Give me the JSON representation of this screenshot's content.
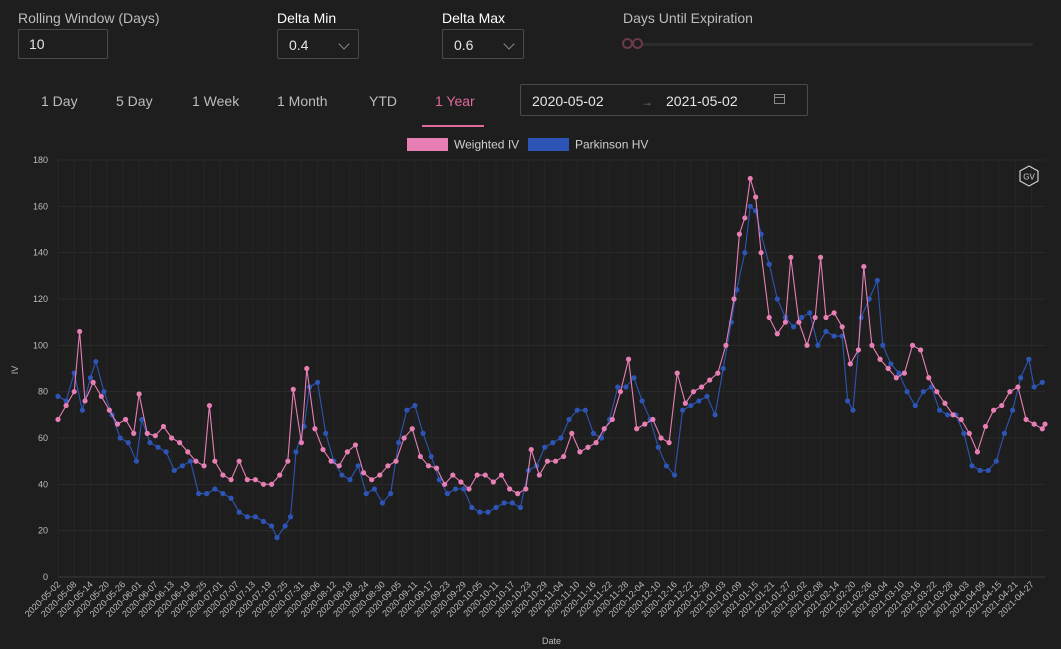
{
  "controls": {
    "rolling_window_label": "Rolling Window (Days)",
    "rolling_window_value": "10",
    "delta_min_label": "Delta Min",
    "delta_min_value": "0.4",
    "delta_max_label": "Delta Max",
    "delta_max_value": "0.6",
    "days_until_expiration_label": "Days Until Expiration"
  },
  "tabs": [
    "1 Day",
    "5 Day",
    "1 Week",
    "1 Month",
    "YTD",
    "1 Year"
  ],
  "active_tab": "1 Year",
  "date_range": {
    "start": "2020-05-02",
    "end": "2021-05-02"
  },
  "logo_text": "GV",
  "colors": {
    "background": "#1e1e1e",
    "accent": "#e06aa0",
    "weighted_iv": "#e77fb5",
    "parkinson_hv": "#2d55b5"
  },
  "chart_data": {
    "type": "line",
    "xlabel": "Date",
    "ylabel": "IV",
    "ylim": [
      0,
      180
    ],
    "yticks": [
      0,
      20,
      40,
      60,
      80,
      100,
      120,
      140,
      160,
      180
    ],
    "x_start": "2020-05-02",
    "x_end": "2021-05-02",
    "xtick_labels": [
      "2020-05-02",
      "2020-05-08",
      "2020-05-14",
      "2020-05-20",
      "2020-05-26",
      "2020-06-01",
      "2020-06-07",
      "2020-06-13",
      "2020-06-19",
      "2020-06-25",
      "2020-07-01",
      "2020-07-07",
      "2020-07-13",
      "2020-07-19",
      "2020-07-25",
      "2020-07-31",
      "2020-08-06",
      "2020-08-12",
      "2020-08-18",
      "2020-08-24",
      "2020-08-30",
      "2020-09-05",
      "2020-09-11",
      "2020-09-17",
      "2020-09-23",
      "2020-09-29",
      "2020-10-05",
      "2020-10-11",
      "2020-10-17",
      "2020-10-23",
      "2020-10-29",
      "2020-11-04",
      "2020-11-10",
      "2020-11-16",
      "2020-11-22",
      "2020-11-28",
      "2020-12-04",
      "2020-12-10",
      "2020-12-16",
      "2020-12-22",
      "2020-12-28",
      "2021-01-03",
      "2021-01-09",
      "2021-01-15",
      "2021-01-21",
      "2021-01-27",
      "2021-02-02",
      "2021-02-08",
      "2021-02-14",
      "2021-02-20",
      "2021-02-26",
      "2021-03-04",
      "2021-03-10",
      "2021-03-16",
      "2021-03-22",
      "2021-03-28",
      "2021-04-03",
      "2021-04-09",
      "2021-04-15",
      "2021-04-21",
      "2021-04-27"
    ],
    "legend_position": "top-center",
    "grid": true,
    "series": [
      {
        "name": "Weighted IV",
        "color": "#e77fb5",
        "points": [
          [
            "2020-05-02",
            68
          ],
          [
            "2020-05-05",
            74
          ],
          [
            "2020-05-08",
            80
          ],
          [
            "2020-05-10",
            106
          ],
          [
            "2020-05-12",
            76
          ],
          [
            "2020-05-15",
            84
          ],
          [
            "2020-05-18",
            78
          ],
          [
            "2020-05-21",
            72
          ],
          [
            "2020-05-24",
            66
          ],
          [
            "2020-05-27",
            68
          ],
          [
            "2020-05-30",
            62
          ],
          [
            "2020-06-01",
            79
          ],
          [
            "2020-06-04",
            62
          ],
          [
            "2020-06-07",
            61
          ],
          [
            "2020-06-10",
            65
          ],
          [
            "2020-06-13",
            60
          ],
          [
            "2020-06-16",
            58
          ],
          [
            "2020-06-19",
            54
          ],
          [
            "2020-06-22",
            50
          ],
          [
            "2020-06-25",
            48
          ],
          [
            "2020-06-27",
            74
          ],
          [
            "2020-06-29",
            50
          ],
          [
            "2020-07-02",
            44
          ],
          [
            "2020-07-05",
            42
          ],
          [
            "2020-07-08",
            50
          ],
          [
            "2020-07-11",
            42
          ],
          [
            "2020-07-14",
            42
          ],
          [
            "2020-07-17",
            40
          ],
          [
            "2020-07-20",
            40
          ],
          [
            "2020-07-23",
            44
          ],
          [
            "2020-07-26",
            50
          ],
          [
            "2020-07-28",
            81
          ],
          [
            "2020-07-31",
            58
          ],
          [
            "2020-08-02",
            90
          ],
          [
            "2020-08-05",
            64
          ],
          [
            "2020-08-08",
            55
          ],
          [
            "2020-08-11",
            50
          ],
          [
            "2020-08-14",
            48
          ],
          [
            "2020-08-17",
            54
          ],
          [
            "2020-08-20",
            57
          ],
          [
            "2020-08-23",
            45
          ],
          [
            "2020-08-26",
            42
          ],
          [
            "2020-08-29",
            44
          ],
          [
            "2020-09-01",
            48
          ],
          [
            "2020-09-04",
            50
          ],
          [
            "2020-09-07",
            60
          ],
          [
            "2020-09-10",
            64
          ],
          [
            "2020-09-13",
            52
          ],
          [
            "2020-09-16",
            48
          ],
          [
            "2020-09-19",
            47
          ],
          [
            "2020-09-22",
            40
          ],
          [
            "2020-09-25",
            44
          ],
          [
            "2020-09-28",
            41
          ],
          [
            "2020-10-01",
            38
          ],
          [
            "2020-10-04",
            44
          ],
          [
            "2020-10-07",
            44
          ],
          [
            "2020-10-10",
            41
          ],
          [
            "2020-10-13",
            44
          ],
          [
            "2020-10-16",
            38
          ],
          [
            "2020-10-19",
            36
          ],
          [
            "2020-10-22",
            38
          ],
          [
            "2020-10-24",
            55
          ],
          [
            "2020-10-27",
            44
          ],
          [
            "2020-10-30",
            50
          ],
          [
            "2020-11-02",
            50
          ],
          [
            "2020-11-05",
            52
          ],
          [
            "2020-11-08",
            62
          ],
          [
            "2020-11-11",
            54
          ],
          [
            "2020-11-14",
            56
          ],
          [
            "2020-11-17",
            58
          ],
          [
            "2020-11-20",
            64
          ],
          [
            "2020-11-23",
            68
          ],
          [
            "2020-11-26",
            80
          ],
          [
            "2020-11-29",
            94
          ],
          [
            "2020-12-02",
            64
          ],
          [
            "2020-12-05",
            66
          ],
          [
            "2020-12-08",
            68
          ],
          [
            "2020-12-11",
            60
          ],
          [
            "2020-12-14",
            58
          ],
          [
            "2020-12-17",
            88
          ],
          [
            "2020-12-20",
            75
          ],
          [
            "2020-12-23",
            80
          ],
          [
            "2020-12-26",
            82
          ],
          [
            "2020-12-29",
            85
          ],
          [
            "2021-01-01",
            88
          ],
          [
            "2021-01-04",
            100
          ],
          [
            "2021-01-07",
            120
          ],
          [
            "2021-01-09",
            148
          ],
          [
            "2021-01-11",
            155
          ],
          [
            "2021-01-13",
            172
          ],
          [
            "2021-01-15",
            164
          ],
          [
            "2021-01-17",
            140
          ],
          [
            "2021-01-20",
            112
          ],
          [
            "2021-01-23",
            105
          ],
          [
            "2021-01-26",
            110
          ],
          [
            "2021-01-28",
            138
          ],
          [
            "2021-01-31",
            110
          ],
          [
            "2021-02-03",
            100
          ],
          [
            "2021-02-06",
            112
          ],
          [
            "2021-02-08",
            138
          ],
          [
            "2021-02-10",
            112
          ],
          [
            "2021-02-13",
            114
          ],
          [
            "2021-02-16",
            108
          ],
          [
            "2021-02-19",
            92
          ],
          [
            "2021-02-22",
            98
          ],
          [
            "2021-02-24",
            134
          ],
          [
            "2021-02-27",
            100
          ],
          [
            "2021-03-02",
            94
          ],
          [
            "2021-03-05",
            90
          ],
          [
            "2021-03-08",
            86
          ],
          [
            "2021-03-11",
            88
          ],
          [
            "2021-03-14",
            100
          ],
          [
            "2021-03-17",
            98
          ],
          [
            "2021-03-20",
            86
          ],
          [
            "2021-03-23",
            80
          ],
          [
            "2021-03-26",
            75
          ],
          [
            "2021-03-29",
            70
          ],
          [
            "2021-04-01",
            68
          ],
          [
            "2021-04-04",
            62
          ],
          [
            "2021-04-07",
            54
          ],
          [
            "2021-04-10",
            65
          ],
          [
            "2021-04-13",
            72
          ],
          [
            "2021-04-16",
            74
          ],
          [
            "2021-04-19",
            80
          ],
          [
            "2021-04-22",
            82
          ],
          [
            "2021-04-25",
            68
          ],
          [
            "2021-04-28",
            66
          ],
          [
            "2021-05-01",
            64
          ],
          [
            "2021-05-02",
            66
          ]
        ]
      },
      {
        "name": "Parkinson HV",
        "color": "#2d55b5",
        "points": [
          [
            "2020-05-02",
            78
          ],
          [
            "2020-05-05",
            76
          ],
          [
            "2020-05-08",
            88
          ],
          [
            "2020-05-11",
            72
          ],
          [
            "2020-05-14",
            86
          ],
          [
            "2020-05-16",
            93
          ],
          [
            "2020-05-19",
            80
          ],
          [
            "2020-05-22",
            70
          ],
          [
            "2020-05-25",
            60
          ],
          [
            "2020-05-28",
            58
          ],
          [
            "2020-05-31",
            50
          ],
          [
            "2020-06-02",
            68
          ],
          [
            "2020-06-05",
            58
          ],
          [
            "2020-06-08",
            56
          ],
          [
            "2020-06-11",
            54
          ],
          [
            "2020-06-14",
            46
          ],
          [
            "2020-06-17",
            48
          ],
          [
            "2020-06-20",
            50
          ],
          [
            "2020-06-23",
            36
          ],
          [
            "2020-06-26",
            36
          ],
          [
            "2020-06-29",
            38
          ],
          [
            "2020-07-02",
            36
          ],
          [
            "2020-07-05",
            34
          ],
          [
            "2020-07-08",
            28
          ],
          [
            "2020-07-11",
            26
          ],
          [
            "2020-07-14",
            26
          ],
          [
            "2020-07-17",
            24
          ],
          [
            "2020-07-20",
            22
          ],
          [
            "2020-07-22",
            17
          ],
          [
            "2020-07-25",
            22
          ],
          [
            "2020-07-27",
            26
          ],
          [
            "2020-07-29",
            54
          ],
          [
            "2020-08-01",
            65
          ],
          [
            "2020-08-03",
            82
          ],
          [
            "2020-08-06",
            84
          ],
          [
            "2020-08-09",
            62
          ],
          [
            "2020-08-12",
            50
          ],
          [
            "2020-08-15",
            44
          ],
          [
            "2020-08-18",
            42
          ],
          [
            "2020-08-21",
            48
          ],
          [
            "2020-08-24",
            36
          ],
          [
            "2020-08-27",
            38
          ],
          [
            "2020-08-30",
            32
          ],
          [
            "2020-09-02",
            36
          ],
          [
            "2020-09-05",
            58
          ],
          [
            "2020-09-08",
            72
          ],
          [
            "2020-09-11",
            74
          ],
          [
            "2020-09-14",
            62
          ],
          [
            "2020-09-17",
            52
          ],
          [
            "2020-09-20",
            42
          ],
          [
            "2020-09-23",
            36
          ],
          [
            "2020-09-26",
            38
          ],
          [
            "2020-09-29",
            38
          ],
          [
            "2020-10-02",
            30
          ],
          [
            "2020-10-05",
            28
          ],
          [
            "2020-10-08",
            28
          ],
          [
            "2020-10-11",
            30
          ],
          [
            "2020-10-14",
            32
          ],
          [
            "2020-10-17",
            32
          ],
          [
            "2020-10-20",
            30
          ],
          [
            "2020-10-23",
            46
          ],
          [
            "2020-10-26",
            48
          ],
          [
            "2020-10-29",
            56
          ],
          [
            "2020-11-01",
            58
          ],
          [
            "2020-11-04",
            60
          ],
          [
            "2020-11-07",
            68
          ],
          [
            "2020-11-10",
            72
          ],
          [
            "2020-11-13",
            72
          ],
          [
            "2020-11-16",
            62
          ],
          [
            "2020-11-19",
            60
          ],
          [
            "2020-11-22",
            68
          ],
          [
            "2020-11-25",
            82
          ],
          [
            "2020-11-28",
            82
          ],
          [
            "2020-12-01",
            86
          ],
          [
            "2020-12-04",
            76
          ],
          [
            "2020-12-07",
            68
          ],
          [
            "2020-12-10",
            56
          ],
          [
            "2020-12-13",
            48
          ],
          [
            "2020-12-16",
            44
          ],
          [
            "2020-12-19",
            72
          ],
          [
            "2020-12-22",
            74
          ],
          [
            "2020-12-25",
            76
          ],
          [
            "2020-12-28",
            78
          ],
          [
            "2020-12-31",
            70
          ],
          [
            "2021-01-03",
            90
          ],
          [
            "2021-01-06",
            110
          ],
          [
            "2021-01-08",
            124
          ],
          [
            "2021-01-11",
            140
          ],
          [
            "2021-01-13",
            160
          ],
          [
            "2021-01-15",
            158
          ],
          [
            "2021-01-17",
            148
          ],
          [
            "2021-01-20",
            135
          ],
          [
            "2021-01-23",
            120
          ],
          [
            "2021-01-26",
            112
          ],
          [
            "2021-01-29",
            108
          ],
          [
            "2021-02-01",
            112
          ],
          [
            "2021-02-04",
            114
          ],
          [
            "2021-02-07",
            100
          ],
          [
            "2021-02-10",
            106
          ],
          [
            "2021-02-13",
            104
          ],
          [
            "2021-02-16",
            104
          ],
          [
            "2021-02-18",
            76
          ],
          [
            "2021-02-20",
            72
          ],
          [
            "2021-02-23",
            112
          ],
          [
            "2021-02-26",
            120
          ],
          [
            "2021-03-01",
            128
          ],
          [
            "2021-03-03",
            100
          ],
          [
            "2021-03-06",
            92
          ],
          [
            "2021-03-09",
            88
          ],
          [
            "2021-03-12",
            80
          ],
          [
            "2021-03-15",
            74
          ],
          [
            "2021-03-18",
            80
          ],
          [
            "2021-03-21",
            82
          ],
          [
            "2021-03-24",
            72
          ],
          [
            "2021-03-27",
            70
          ],
          [
            "2021-03-30",
            70
          ],
          [
            "2021-04-02",
            62
          ],
          [
            "2021-04-05",
            48
          ],
          [
            "2021-04-08",
            46
          ],
          [
            "2021-04-11",
            46
          ],
          [
            "2021-04-14",
            50
          ],
          [
            "2021-04-17",
            62
          ],
          [
            "2021-04-20",
            72
          ],
          [
            "2021-04-23",
            86
          ],
          [
            "2021-04-26",
            94
          ],
          [
            "2021-04-28",
            82
          ],
          [
            "2021-05-01",
            84
          ]
        ]
      }
    ]
  }
}
